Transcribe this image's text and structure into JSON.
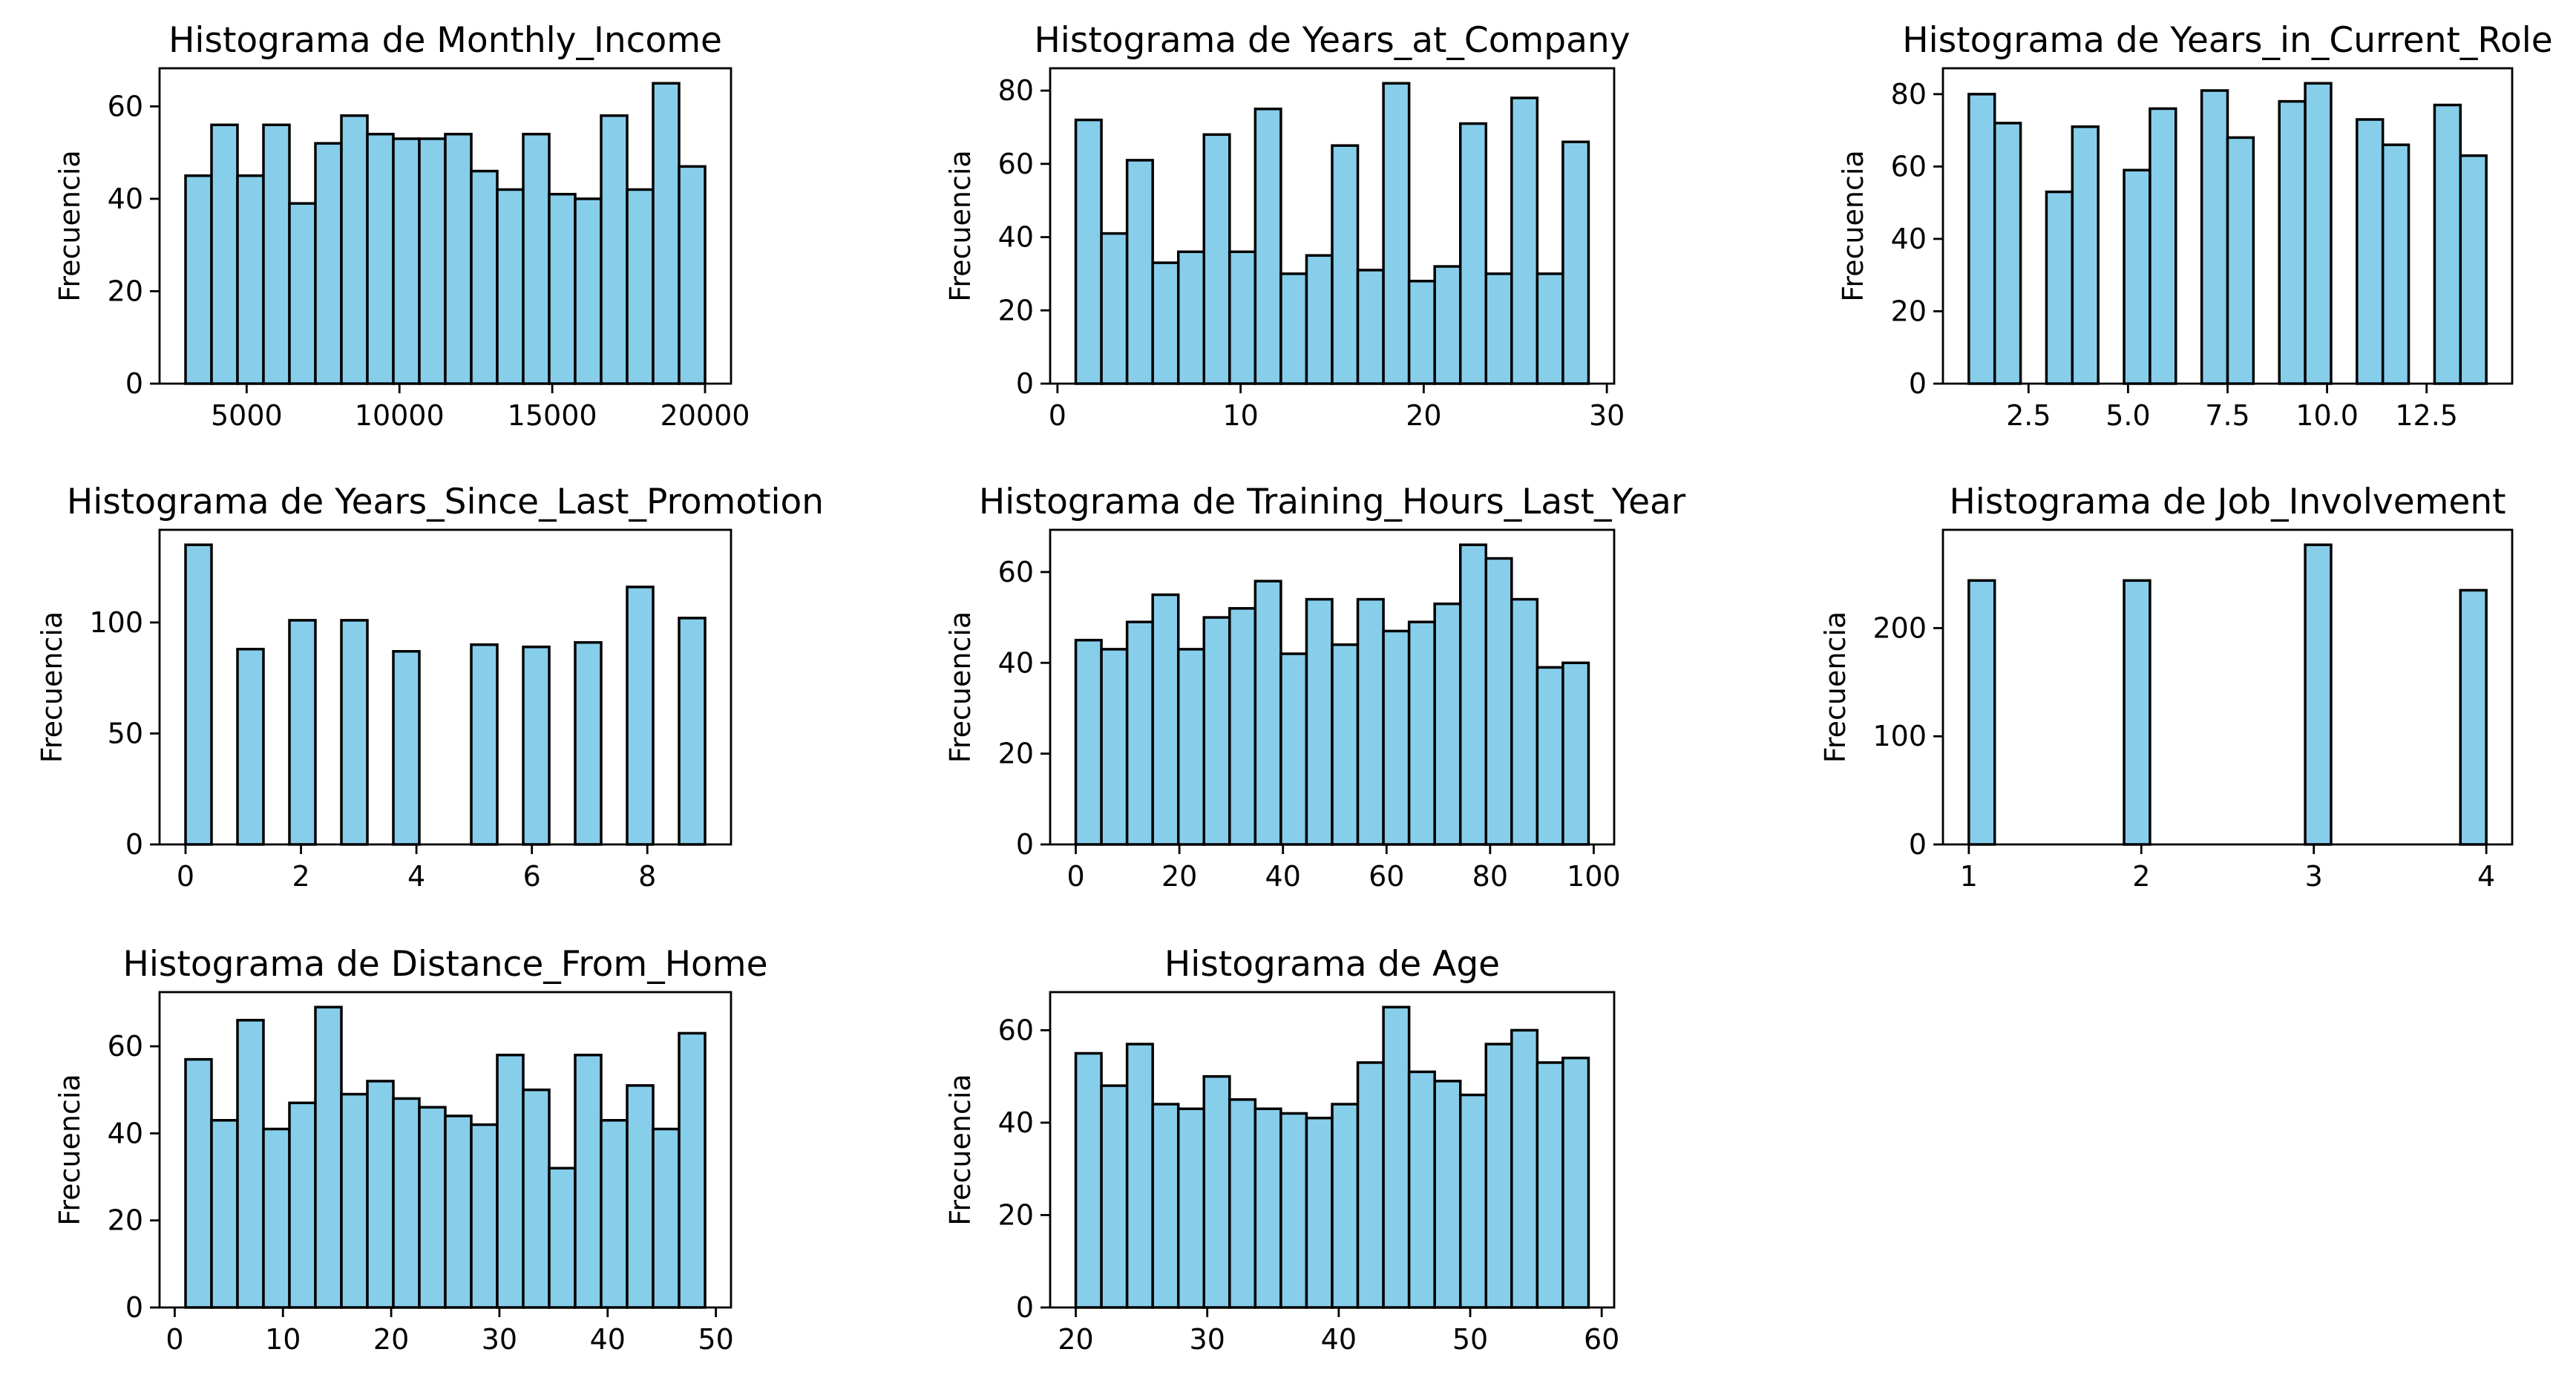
{
  "figure": {
    "bar_color": "#87ceeb",
    "edge_color": "#000000",
    "background": "#ffffff"
  },
  "chart_data": [
    {
      "type": "bar",
      "title": "Histograma de Monthly_Income",
      "ylabel": "Frecuencia",
      "xlim": [
        2150,
        20850
      ],
      "ylim": [
        0,
        68.25
      ],
      "x_ticks": [
        5000,
        10000,
        15000,
        20000
      ],
      "y_ticks": [
        0,
        20,
        40,
        60
      ],
      "bin_edges": [
        3000,
        3850,
        4700,
        5550,
        6400,
        7250,
        8100,
        8950,
        9800,
        10650,
        11500,
        12350,
        13200,
        14050,
        14900,
        15750,
        16600,
        17450,
        18300,
        19150,
        20000
      ],
      "values": [
        45,
        56,
        45,
        56,
        39,
        52,
        58,
        54,
        53,
        53,
        54,
        46,
        42,
        54,
        41,
        40,
        58,
        42,
        65,
        47
      ]
    },
    {
      "type": "bar",
      "title": "Histograma de Years_at_Company",
      "ylabel": "Frecuencia",
      "xlim": [
        -0.4,
        30.4
      ],
      "ylim": [
        0,
        86.1
      ],
      "x_ticks": [
        0,
        10,
        20,
        30
      ],
      "y_ticks": [
        0,
        20,
        40,
        60,
        80
      ],
      "bin_edges": [
        1,
        2.4,
        3.8,
        5.2,
        6.6,
        8,
        9.4,
        10.8,
        12.2,
        13.6,
        15,
        16.4,
        17.8,
        19.2,
        20.6,
        22,
        23.4,
        24.8,
        26.2,
        27.6,
        29
      ],
      "values": [
        72,
        41,
        61,
        33,
        36,
        68,
        36,
        75,
        30,
        35,
        65,
        31,
        82,
        28,
        32,
        71,
        30,
        78,
        30,
        66
      ]
    },
    {
      "type": "bar",
      "title": "Histograma de Years_in_Current_Role",
      "ylabel": "Frecuencia",
      "xlim": [
        0.35,
        14.65
      ],
      "ylim": [
        0,
        87.15
      ],
      "x_ticks": [
        2.5,
        5.0,
        7.5,
        10.0,
        12.5
      ],
      "x_tick_labels": [
        "2.5",
        "5.0",
        "7.5",
        "10.0",
        "12.5"
      ],
      "y_ticks": [
        0,
        20,
        40,
        60,
        80
      ],
      "bin_edges": [
        1,
        1.65,
        2.3,
        2.95,
        3.6,
        4.25,
        4.9,
        5.55,
        6.2,
        6.85,
        7.5,
        8.15,
        8.8,
        9.45,
        10.1,
        10.75,
        11.4,
        12.05,
        12.7,
        13.35,
        14
      ],
      "values": [
        80,
        72,
        0,
        53,
        71,
        0,
        59,
        76,
        0,
        81,
        68,
        0,
        78,
        83,
        0,
        73,
        66,
        0,
        77,
        63
      ]
    },
    {
      "type": "bar",
      "title": "Histograma de Years_Since_Last_Promotion",
      "ylabel": "Frecuencia",
      "xlim": [
        -0.45,
        9.45
      ],
      "ylim": [
        0,
        141.75
      ],
      "x_ticks": [
        0,
        2,
        4,
        6,
        8
      ],
      "y_ticks": [
        0,
        50,
        100
      ],
      "bin_edges": [
        0,
        0.45,
        0.9,
        1.35,
        1.8,
        2.25,
        2.7,
        3.15,
        3.6,
        4.05,
        4.5,
        4.95,
        5.4,
        5.85,
        6.3,
        6.75,
        7.2,
        7.65,
        8.1,
        8.55,
        9
      ],
      "values": [
        135,
        0,
        88,
        0,
        101,
        0,
        101,
        0,
        87,
        0,
        0,
        90,
        0,
        89,
        0,
        91,
        0,
        116,
        0,
        102
      ]
    },
    {
      "type": "bar",
      "title": "Histograma de Training_Hours_Last_Year",
      "ylabel": "Frecuencia",
      "xlim": [
        -4.95,
        103.95
      ],
      "ylim": [
        0,
        69.3
      ],
      "x_ticks": [
        0,
        20,
        40,
        60,
        80,
        100
      ],
      "y_ticks": [
        0,
        20,
        40,
        60
      ],
      "bin_edges": [
        0,
        4.95,
        9.9,
        14.85,
        19.8,
        24.75,
        29.7,
        34.65,
        39.6,
        44.55,
        49.5,
        54.45,
        59.4,
        64.35,
        69.3,
        74.25,
        79.2,
        84.15,
        89.1,
        94.05,
        99
      ],
      "values": [
        45,
        43,
        49,
        55,
        43,
        50,
        52,
        58,
        42,
        54,
        44,
        54,
        47,
        49,
        53,
        66,
        63,
        54,
        39,
        40
      ]
    },
    {
      "type": "bar",
      "title": "Histograma de Job_Involvement",
      "ylabel": "Frecuencia",
      "xlim": [
        0.85,
        4.15
      ],
      "ylim": [
        0,
        290.85
      ],
      "x_ticks": [
        1,
        2,
        3,
        4
      ],
      "y_ticks": [
        0,
        100,
        200
      ],
      "bin_edges": [
        1,
        1.15,
        1.3,
        1.45,
        1.6,
        1.75,
        1.9,
        2.05,
        2.2,
        2.35,
        2.5,
        2.65,
        2.8,
        2.95,
        3.1,
        3.25,
        3.4,
        3.55,
        3.7,
        3.85,
        4
      ],
      "values": [
        244,
        0,
        0,
        0,
        0,
        0,
        244,
        0,
        0,
        0,
        0,
        0,
        0,
        277,
        0,
        0,
        0,
        0,
        0,
        235
      ]
    },
    {
      "type": "bar",
      "title": "Histograma de Distance_From_Home",
      "ylabel": "Frecuencia",
      "xlim": [
        -1.4,
        51.4
      ],
      "ylim": [
        0,
        72.45
      ],
      "x_ticks": [
        0,
        10,
        20,
        30,
        40,
        50
      ],
      "y_ticks": [
        0,
        20,
        40,
        60
      ],
      "bin_edges": [
        1,
        3.4,
        5.8,
        8.2,
        10.6,
        13,
        15.4,
        17.8,
        20.2,
        22.6,
        25,
        27.4,
        29.8,
        32.2,
        34.6,
        37,
        39.4,
        41.8,
        44.2,
        46.6,
        49
      ],
      "values": [
        57,
        43,
        66,
        41,
        47,
        69,
        49,
        52,
        48,
        46,
        44,
        42,
        58,
        50,
        32,
        58,
        43,
        51,
        41,
        63
      ]
    },
    {
      "type": "bar",
      "title": "Histograma de Age",
      "ylabel": "Frecuencia",
      "xlim": [
        18.05,
        60.95
      ],
      "ylim": [
        0,
        68.25
      ],
      "x_ticks": [
        20,
        30,
        40,
        50,
        60
      ],
      "y_ticks": [
        0,
        20,
        40,
        60
      ],
      "bin_edges": [
        20,
        21.95,
        23.9,
        25.85,
        27.8,
        29.75,
        31.7,
        33.65,
        35.6,
        37.55,
        39.5,
        41.45,
        43.4,
        45.35,
        47.3,
        49.25,
        51.2,
        53.15,
        55.1,
        57.05,
        59
      ],
      "values": [
        55,
        48,
        57,
        44,
        43,
        50,
        45,
        43,
        42,
        41,
        44,
        53,
        65,
        51,
        49,
        46,
        57,
        60,
        53,
        54
      ]
    }
  ]
}
